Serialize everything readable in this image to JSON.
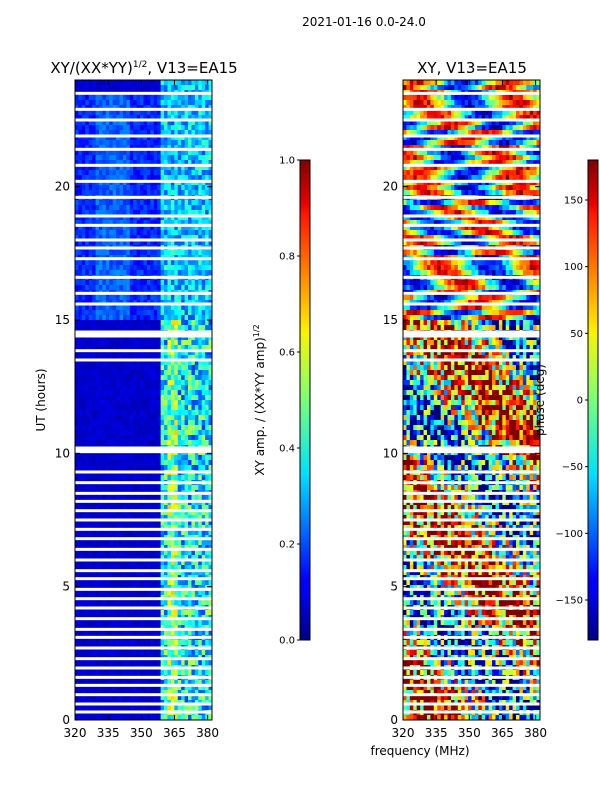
{
  "chart_data": [
    {
      "type": "heatmap",
      "suptitle": "2021-01-16 0.0-24.0",
      "title": "XY/(XX*YY)",
      "title_exponent": "1/2",
      "title_suffix": ", V13=EA15",
      "xlabel": "",
      "ylabel": "UT (hours)",
      "xlim": [
        320,
        382
      ],
      "ylim": [
        0,
        24
      ],
      "xticks": [
        "320",
        "335",
        "350",
        "365",
        "380"
      ],
      "xtick_values": [
        320,
        335,
        350,
        365,
        380
      ],
      "yticks": [
        "0",
        "5",
        "10",
        "15",
        "20"
      ],
      "ytick_values": [
        0,
        5,
        10,
        15,
        20
      ],
      "colorbar": {
        "label": "XY amp. / (XX*YY amp)",
        "label_exponent": "1/2",
        "range": [
          0.0,
          1.0
        ],
        "ticks": [
          "0.0",
          "0.2",
          "0.4",
          "0.6",
          "0.8",
          "1.0"
        ],
        "tick_values": [
          0.0,
          0.2,
          0.4,
          0.6,
          0.8,
          1.0
        ]
      },
      "colormap": "jet",
      "flagged_hours": [
        0.3,
        0.6,
        0.95,
        1.3,
        1.6,
        1.95,
        2.3,
        2.7,
        3.1,
        3.4,
        3.8,
        4.2,
        4.55,
        4.9,
        5.3,
        5.6,
        6.0,
        6.4,
        6.8,
        7.15,
        7.5,
        7.85,
        8.2,
        8.5,
        8.9,
        9.3,
        10.1,
        10.2,
        13.5,
        13.85,
        14.4,
        14.55,
        15.6,
        16.0,
        16.6,
        17.3,
        17.7,
        18.0,
        18.55,
        18.9,
        19.6,
        20.2,
        20.8,
        21.4,
        21.9,
        22.5,
        22.9,
        23.5
      ]
    },
    {
      "type": "heatmap",
      "title": "XY, V13=EA15",
      "xlabel": "frequency (MHz)",
      "ylabel": "",
      "xlim": [
        320,
        382
      ],
      "ylim": [
        0,
        24
      ],
      "xticks": [
        "320",
        "335",
        "350",
        "365",
        "380"
      ],
      "xtick_values": [
        320,
        335,
        350,
        365,
        380
      ],
      "yticks": [
        "0",
        "5",
        "10",
        "15",
        "20"
      ],
      "ytick_values": [
        0,
        5,
        10,
        15,
        20
      ],
      "colorbar": {
        "label": "phase (deg)",
        "range": [
          -180,
          180
        ],
        "ticks": [
          "−150",
          "−100",
          "−50",
          "0",
          "50",
          "100",
          "150"
        ],
        "tick_values": [
          -150,
          -100,
          -50,
          0,
          50,
          100,
          150
        ]
      },
      "colormap": "jet",
      "flagged_hours": [
        0.3,
        0.6,
        0.95,
        1.3,
        1.6,
        1.95,
        2.3,
        2.7,
        3.1,
        3.4,
        3.8,
        4.2,
        4.55,
        4.9,
        5.3,
        5.6,
        6.0,
        6.4,
        6.8,
        7.15,
        7.5,
        7.85,
        8.2,
        8.5,
        8.9,
        9.3,
        10.1,
        10.2,
        13.5,
        13.85,
        14.4,
        14.55,
        15.6,
        16.0,
        16.6,
        17.3,
        17.7,
        18.0,
        18.55,
        18.9,
        19.6,
        20.2,
        20.8,
        21.4,
        21.9,
        22.5,
        22.9,
        23.5
      ]
    }
  ]
}
